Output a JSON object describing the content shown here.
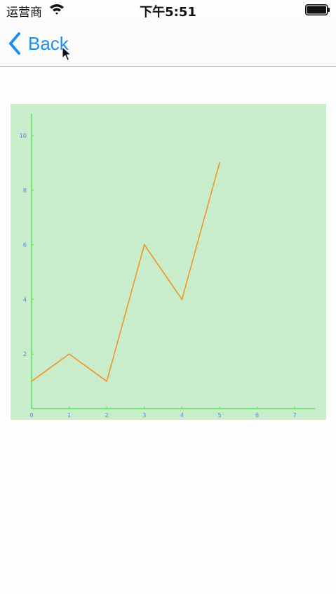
{
  "status_bar": {
    "carrier": "运营商",
    "time": "下午5:51",
    "wifi_icon": "wifi-icon",
    "battery_icon": "battery-icon"
  },
  "nav": {
    "back_label": "Back",
    "back_icon": "chevron-left-icon",
    "accent_color": "#1e8ff0"
  },
  "chart_data": {
    "type": "line",
    "x": [
      0,
      1,
      2,
      3,
      4,
      5
    ],
    "series": [
      {
        "values": [
          1,
          2,
          1,
          6,
          4,
          9
        ],
        "color": "#f0901e"
      }
    ],
    "xticks": [
      "0",
      "1",
      "2",
      "3",
      "4",
      "5",
      "6",
      "7"
    ],
    "yticks": [
      "2",
      "4",
      "6",
      "8",
      "10"
    ],
    "xlim": [
      0,
      7.5
    ],
    "ylim": [
      0,
      10.8
    ],
    "title": "",
    "xlabel": "",
    "ylabel": "",
    "grid": false,
    "background": "#c9ecca",
    "axis_color": "#57e357",
    "tick_label_color": "#5a7fd8"
  }
}
